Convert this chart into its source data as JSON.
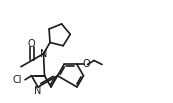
{
  "bg_color": "#ffffff",
  "line_color": "#1a1a1a",
  "line_width": 1.2,
  "font_size": 6.5,
  "figsize": [
    1.73,
    1.03
  ],
  "dpi": 100,
  "xlim": [
    0,
    1.73
  ],
  "ylim": [
    0,
    1.03
  ]
}
